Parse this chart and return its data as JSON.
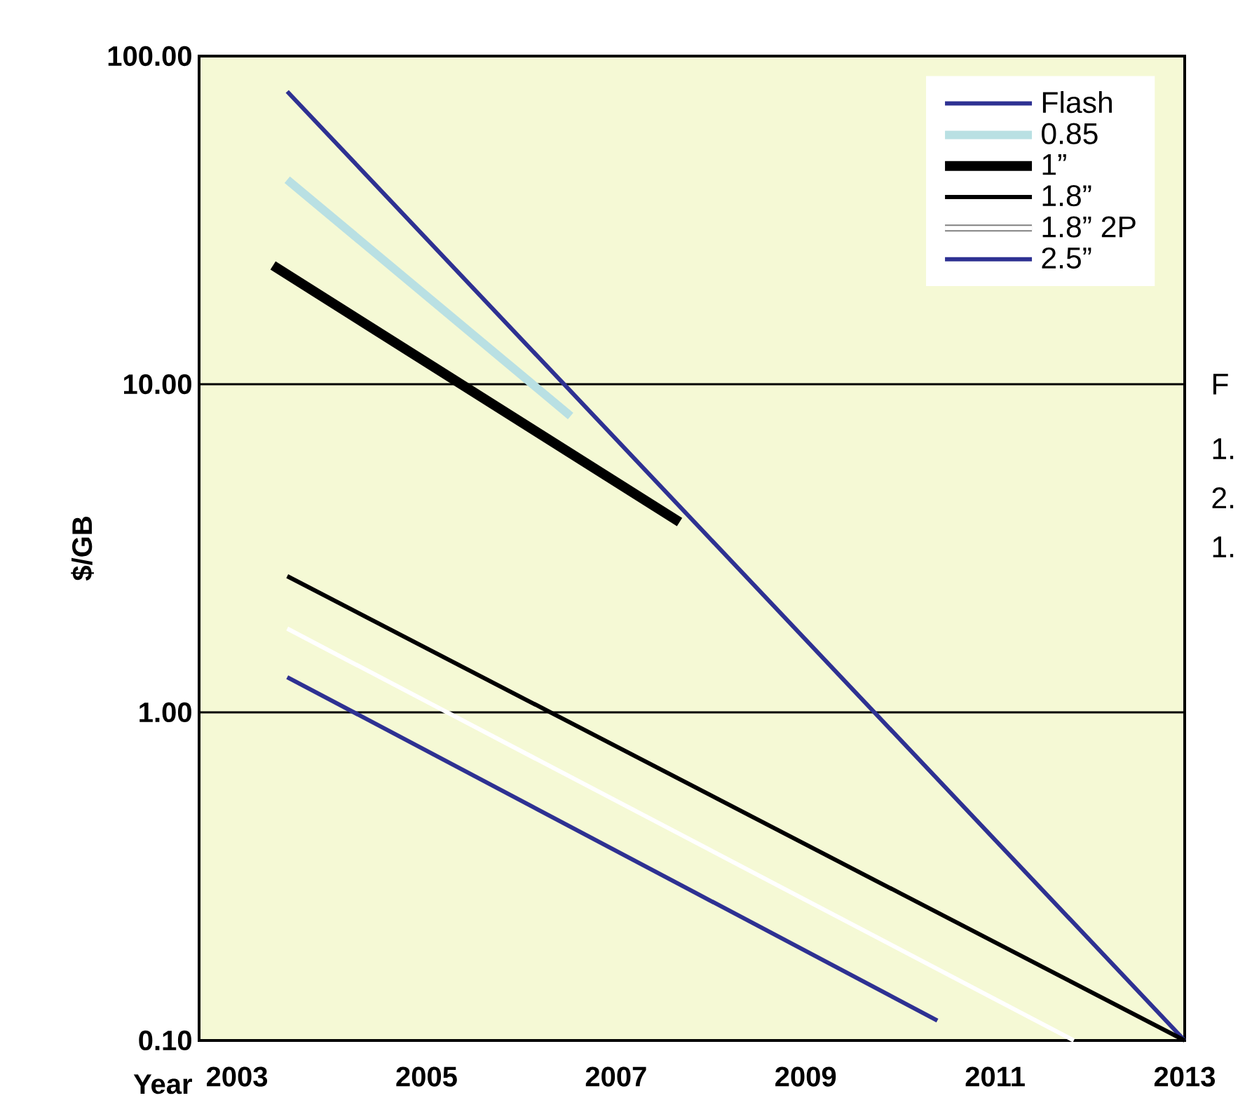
{
  "chart_data": {
    "type": "line",
    "xlabel": "Year",
    "ylabel": "$/GB",
    "log": "y",
    "grid": "y",
    "legend": "top right",
    "xlim": [
      2002.6,
      2013
    ],
    "xticks": [
      2003,
      2005,
      2007,
      2009,
      2011,
      2013
    ],
    "ylim": [
      0.1,
      100
    ],
    "yticks": [
      {
        "value": 0.1,
        "label": "0.10"
      },
      {
        "value": 1,
        "label": "1.00"
      },
      {
        "value": 10,
        "label": "10.00"
      },
      {
        "value": 100,
        "label": "100.00"
      }
    ],
    "series": [
      {
        "name": "Flash",
        "color": "#2e3192",
        "x": [
          2003.53,
          2013
        ],
        "values": [
          78,
          0.1
        ]
      },
      {
        "name": "0.85",
        "color": "#b9e0e3",
        "x": [
          2003.53,
          2006.52
        ],
        "values": [
          42,
          8.0
        ]
      },
      {
        "name": "1”",
        "color": "#000000",
        "x": [
          2003.38,
          2007.67
        ],
        "values": [
          23,
          3.8
        ]
      },
      {
        "name": "1.8”",
        "color": "#000000",
        "x": [
          2003.53,
          2013
        ],
        "values": [
          2.6,
          0.1
        ]
      },
      {
        "name": "1.8” 2P",
        "color": "#ffffff",
        "x": [
          2003.53,
          2011.83
        ],
        "values": [
          1.8,
          0.1
        ]
      },
      {
        "name": "2.5”",
        "color": "#2e3192",
        "x": [
          2003.53,
          2010.39
        ],
        "values": [
          1.28,
          0.115
        ]
      }
    ],
    "annotations": [
      "F",
      "1.",
      "2.",
      "1."
    ]
  }
}
